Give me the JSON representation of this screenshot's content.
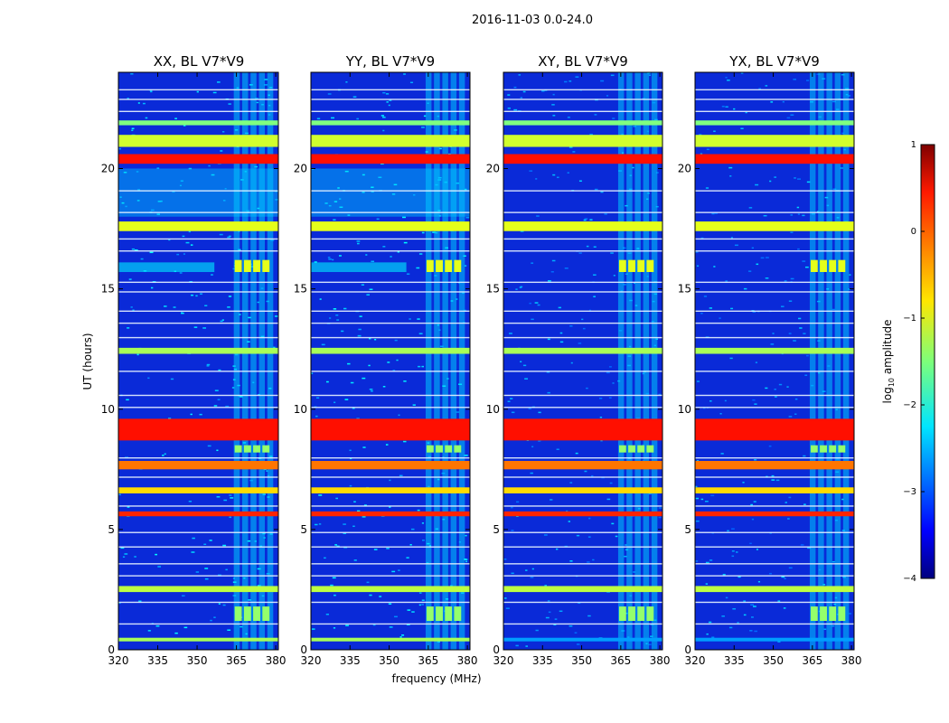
{
  "chart_data": {
    "type": "heatmap",
    "suptitle": "2016-11-03 0.0-24.0",
    "xlabel": "frequency (MHz)",
    "ylabel": "UT (hours)",
    "xlim": [
      320,
      381
    ],
    "ylim": [
      0,
      24
    ],
    "xticks": [
      "320",
      "335",
      "350",
      "365",
      "380"
    ],
    "xtick_values": [
      320,
      335,
      350,
      365,
      380
    ],
    "yticks": [
      "0",
      "5",
      "10",
      "15",
      "20"
    ],
    "ytick_values": [
      0,
      5,
      10,
      15,
      20
    ],
    "panels": [
      {
        "title": "XX, BL V7*V9",
        "base_level": -3.3
      },
      {
        "title": "YY, BL V7*V9",
        "base_level": -3.3
      },
      {
        "title": "XY, BL V7*V9",
        "base_level": -3.5
      },
      {
        "title": "YX, BL V7*V9",
        "base_level": -3.5
      }
    ],
    "rfi_freq_band_mhz": [
      364,
      380
    ],
    "strong_time_bands": [
      {
        "t0": 0.35,
        "t1": 0.5,
        "level": -1.3,
        "cross": -2.6
      },
      {
        "t0": 1.2,
        "t1": 1.8,
        "level": -1.4,
        "band_only": true
      },
      {
        "t0": 2.4,
        "t1": 2.65,
        "level": -1.2,
        "cross": -1.2
      },
      {
        "t0": 5.55,
        "t1": 5.75,
        "level": 0.2,
        "cross": 0.2
      },
      {
        "t0": 6.5,
        "t1": 6.75,
        "level": -0.7,
        "cross": -0.7
      },
      {
        "t0": 7.5,
        "t1": 7.85,
        "level": -0.2,
        "cross": -0.2
      },
      {
        "t0": 8.2,
        "t1": 8.5,
        "level": -1.4,
        "band_only": true
      },
      {
        "t0": 8.7,
        "t1": 9.6,
        "level": 0.3,
        "cross": 0.3
      },
      {
        "t0": 12.3,
        "t1": 12.55,
        "level": -1.3,
        "cross": -1.3
      },
      {
        "t0": 15.7,
        "t1": 16.2,
        "level": -1.0,
        "band_only": true
      },
      {
        "t0": 17.4,
        "t1": 17.8,
        "level": -1.0,
        "cross": -1.0
      },
      {
        "t0": 20.2,
        "t1": 20.6,
        "level": 0.3,
        "cross": 0.3
      },
      {
        "t0": 20.9,
        "t1": 21.4,
        "level": -1.1,
        "cross": -1.1
      },
      {
        "t0": 21.8,
        "t1": 22.0,
        "level": -1.5,
        "cross": -1.5
      }
    ],
    "colorbar": {
      "label": "log10 amplitude",
      "min": -4,
      "max": 1,
      "ticks": [
        "1",
        "0",
        "−1",
        "−2",
        "−3",
        "−4"
      ],
      "tick_values": [
        1,
        0,
        -1,
        -2,
        -3,
        -4
      ],
      "colormap": "jet"
    }
  }
}
